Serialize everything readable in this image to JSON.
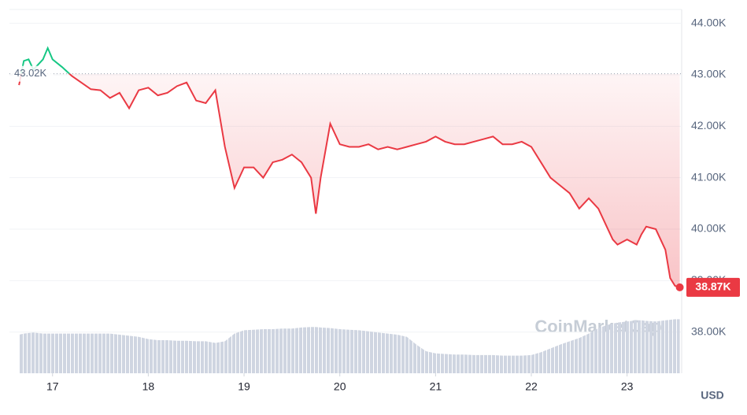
{
  "chart_data": {
    "type": "line",
    "x": [
      16.65,
      16.7,
      16.75,
      16.8,
      16.9,
      16.95,
      17.0,
      17.1,
      17.2,
      17.3,
      17.4,
      17.5,
      17.6,
      17.7,
      17.8,
      17.9,
      18.0,
      18.1,
      18.2,
      18.3,
      18.4,
      18.5,
      18.6,
      18.7,
      18.8,
      18.9,
      19.0,
      19.1,
      19.2,
      19.3,
      19.4,
      19.5,
      19.6,
      19.7,
      19.75,
      19.8,
      19.9,
      20.0,
      20.1,
      20.2,
      20.3,
      20.4,
      20.5,
      20.6,
      20.7,
      20.8,
      20.9,
      21.0,
      21.1,
      21.2,
      21.3,
      21.4,
      21.5,
      21.6,
      21.7,
      21.8,
      21.9,
      22.0,
      22.1,
      22.2,
      22.3,
      22.4,
      22.5,
      22.6,
      22.7,
      22.8,
      22.85,
      22.9,
      23.0,
      23.1,
      23.15,
      23.2,
      23.3,
      23.4,
      23.45,
      23.5,
      23.55
    ],
    "values": [
      42800,
      43270,
      43300,
      43100,
      43300,
      43520,
      43300,
      43150,
      42980,
      42850,
      42720,
      42700,
      42550,
      42650,
      42350,
      42700,
      42750,
      42600,
      42650,
      42780,
      42850,
      42500,
      42450,
      42700,
      41600,
      40800,
      41200,
      41200,
      41000,
      41300,
      41350,
      41450,
      41300,
      41000,
      40300,
      41000,
      42050,
      41650,
      41600,
      41600,
      41650,
      41550,
      41600,
      41550,
      41600,
      41650,
      41700,
      41800,
      41700,
      41650,
      41650,
      41700,
      41750,
      41800,
      41650,
      41650,
      41700,
      41600,
      41300,
      41000,
      40850,
      40700,
      40400,
      40600,
      40400,
      40000,
      39800,
      39700,
      39800,
      39700,
      39900,
      40050,
      40000,
      39600,
      39050,
      38900,
      38870
    ],
    "colors": {
      "up": "#16c784",
      "down": "#ea3943"
    },
    "reference": {
      "value": 43020,
      "label": "43.02K"
    },
    "last_price": {
      "value": 38870,
      "label": "38.87K"
    },
    "volume": {
      "color": "#cfd5e1",
      "ylim": [
        0,
        100
      ],
      "values": [
        70,
        72,
        73,
        74,
        72,
        72,
        72,
        72,
        72,
        72,
        72,
        72,
        72,
        70,
        68,
        66,
        62,
        60,
        60,
        59,
        59,
        58,
        58,
        55,
        58,
        72,
        78,
        79,
        80,
        80,
        81,
        81,
        83,
        84,
        84,
        83,
        82,
        80,
        79,
        78,
        76,
        74,
        72,
        70,
        66,
        52,
        40,
        36,
        35,
        34,
        34,
        33,
        33,
        33,
        32,
        32,
        32,
        33,
        38,
        45,
        52,
        58,
        64,
        72,
        82,
        88,
        90,
        92,
        94,
        96,
        96,
        95,
        94,
        96,
        97,
        98,
        98
      ]
    },
    "xlim": [
      16.55,
      23.57
    ],
    "xticks": [
      17,
      18,
      19,
      20,
      21,
      22,
      23
    ],
    "ylim": [
      37200,
      44270
    ],
    "yticks": [
      {
        "value": 38000,
        "label": "38.00K"
      },
      {
        "value": 39000,
        "label": "39.00K"
      },
      {
        "value": 40000,
        "label": "40.00K"
      },
      {
        "value": 41000,
        "label": "41.00K"
      },
      {
        "value": 42000,
        "label": "42.00K"
      },
      {
        "value": 43000,
        "label": "43.00K"
      },
      {
        "value": 44000,
        "label": "44.00K"
      }
    ],
    "grid": true,
    "y_axis_unit": "USD",
    "watermark": "CoinMarketCap"
  }
}
